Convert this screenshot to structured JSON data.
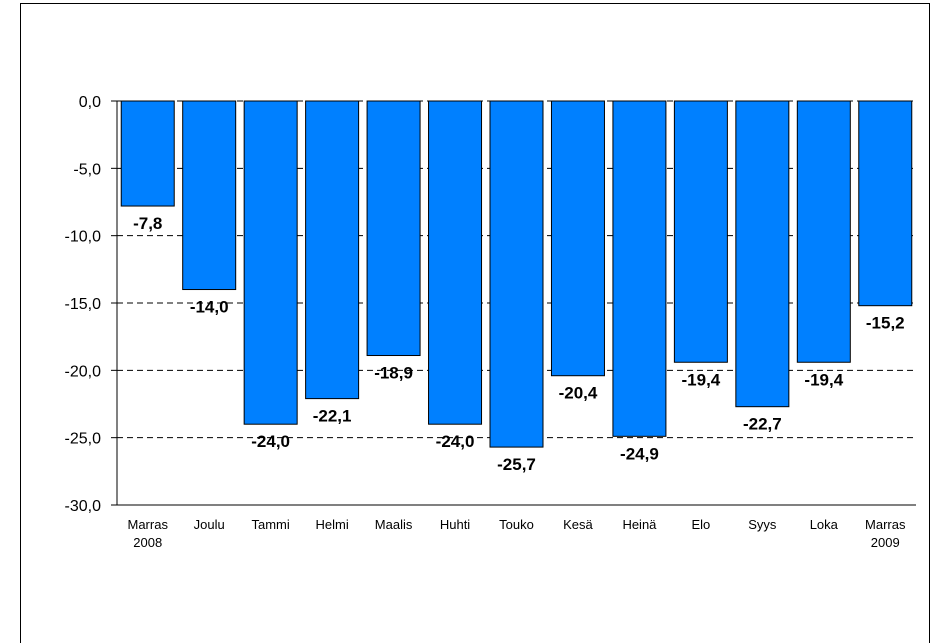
{
  "chart_data": {
    "type": "bar",
    "categories": [
      [
        "Marras",
        "2008"
      ],
      [
        "Joulu"
      ],
      [
        "Tammi"
      ],
      [
        "Helmi"
      ],
      [
        "Maalis"
      ],
      [
        "Huhti"
      ],
      [
        "Touko"
      ],
      [
        "Kesä"
      ],
      [
        "Heinä"
      ],
      [
        "Elo"
      ],
      [
        "Syys"
      ],
      [
        "Loka"
      ],
      [
        "Marras",
        "2009"
      ]
    ],
    "values": [
      -7.8,
      -14.0,
      -24.0,
      -22.1,
      -18.9,
      -24.0,
      -25.7,
      -20.4,
      -24.9,
      -19.4,
      -22.7,
      -19.4,
      -15.2
    ],
    "data_labels": [
      "-7,8",
      "-14,0",
      "-24,0",
      "-22,1",
      "-18,9",
      "-24,0",
      "-25,7",
      "-20,4",
      "-24,9",
      "-19,4",
      "-22,7",
      "-19,4",
      "-15,2"
    ],
    "ylim": [
      -30,
      0
    ],
    "yticks": [
      0,
      -5,
      -10,
      -15,
      -20,
      -25,
      -30
    ],
    "ytick_labels": [
      "0,0",
      "-5,0",
      "-10,0",
      "-15,0",
      "-20,0",
      "-25,0",
      "-30,0"
    ],
    "grid": "dashed horizontal",
    "bar_color": "#0080ff",
    "title": "",
    "xlabel": "",
    "ylabel": ""
  }
}
